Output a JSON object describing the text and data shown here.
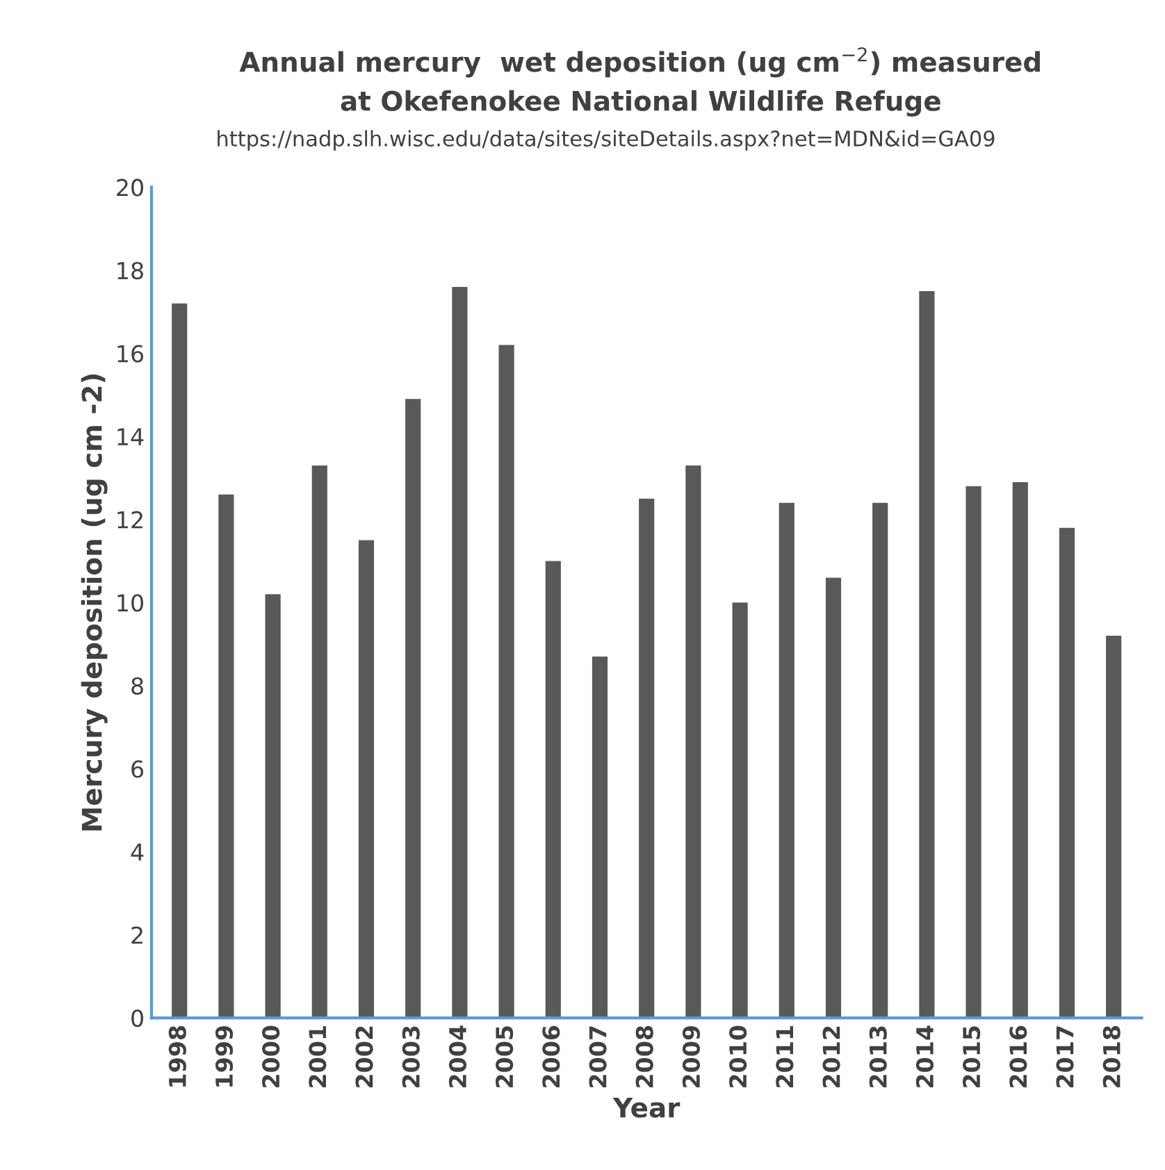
{
  "chart_data": {
    "type": "bar",
    "title": "Annual mercury  wet deposition (ug cm$^{−2}$) measured\nat Okefenokee National Wildlife Refuge",
    "subtitle": "https://nadp.slh.wisc.edu/data/sites/siteDetails.aspx?net=MDN&id=GA09",
    "xlabel": "Year",
    "ylabel": "Mercury deposition (ug cm -2)",
    "categories": [
      "1998",
      "1999",
      "2000",
      "2001",
      "2002",
      "2003",
      "2004",
      "2005",
      "2006",
      "2007",
      "2008",
      "2009",
      "2010",
      "2011",
      "2012",
      "2013",
      "2014",
      "2015",
      "2016",
      "2017",
      "2018"
    ],
    "values": [
      17.2,
      12.6,
      10.2,
      13.3,
      11.5,
      14.9,
      17.6,
      16.2,
      11.0,
      8.7,
      12.5,
      13.3,
      10.0,
      12.4,
      10.6,
      12.4,
      17.5,
      12.8,
      12.9,
      11.8,
      9.2
    ],
    "color": "#595959",
    "ylim": [
      0,
      20
    ],
    "yticks": [
      0,
      2,
      4,
      6,
      8,
      10,
      12,
      14,
      16,
      18,
      20
    ],
    "grid": false,
    "legend": false
  }
}
